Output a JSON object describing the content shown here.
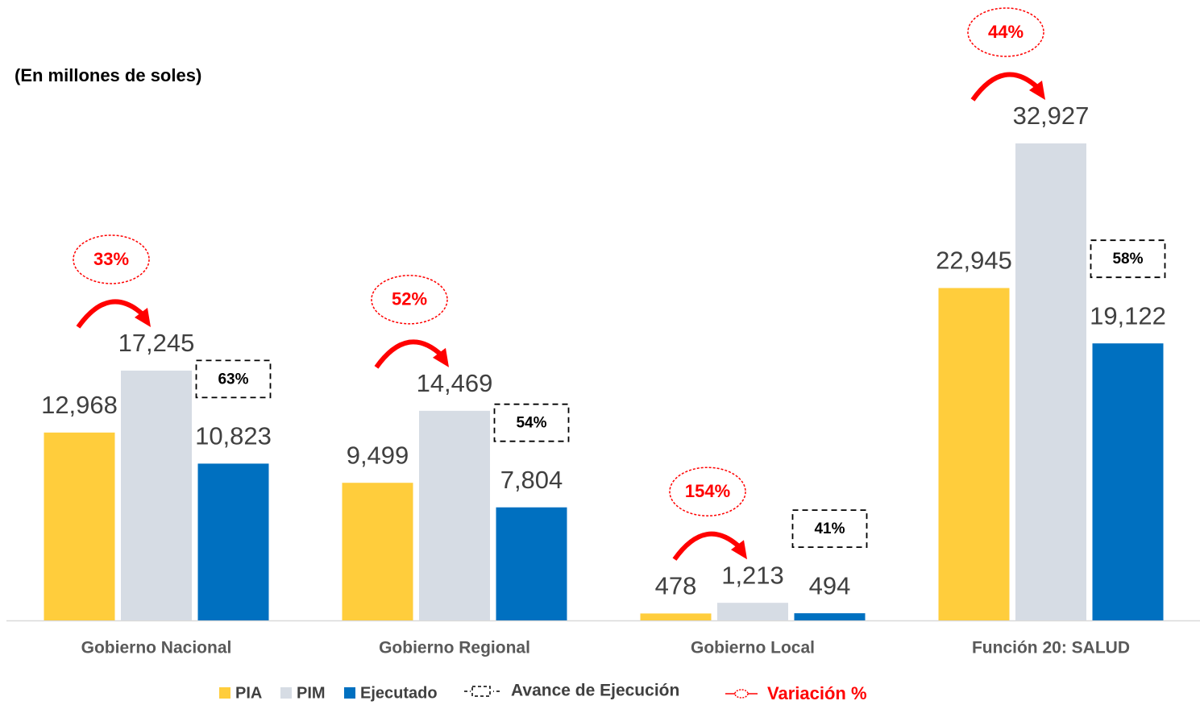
{
  "chart_data": {
    "type": "bar",
    "subtitle": "(En millones de soles)",
    "categories": [
      "Gobierno Nacional",
      "Gobierno Regional",
      "Gobierno Local",
      "Función 20: SALUD"
    ],
    "series": [
      {
        "name": "PIA",
        "color": "#FFCD3C",
        "values": [
          12968,
          9499,
          478,
          22945
        ],
        "value_labels": [
          "12,968",
          "9,499",
          "478",
          "22,945"
        ]
      },
      {
        "name": "PIM",
        "color": "#D6DCE4",
        "values": [
          17245,
          14469,
          1213,
          32927
        ],
        "value_labels": [
          "17,245",
          "14,469",
          "1,213",
          "32,927"
        ]
      },
      {
        "name": "Ejecutado",
        "color": "#0070C0",
        "values": [
          10823,
          7804,
          494,
          19122
        ],
        "value_labels": [
          "10,823",
          "7,804",
          "494",
          "19,122"
        ]
      }
    ],
    "avance": {
      "name": "Avance de Ejecución",
      "values": [
        63,
        54,
        41,
        58
      ],
      "value_labels": [
        "63%",
        "54%",
        "41%",
        "58%"
      ]
    },
    "variacion": {
      "name": "Variación %",
      "color": "#FF0000",
      "values": [
        33,
        52,
        154,
        44
      ],
      "value_labels": [
        "33%",
        "52%",
        "154%",
        "44%"
      ]
    }
  }
}
